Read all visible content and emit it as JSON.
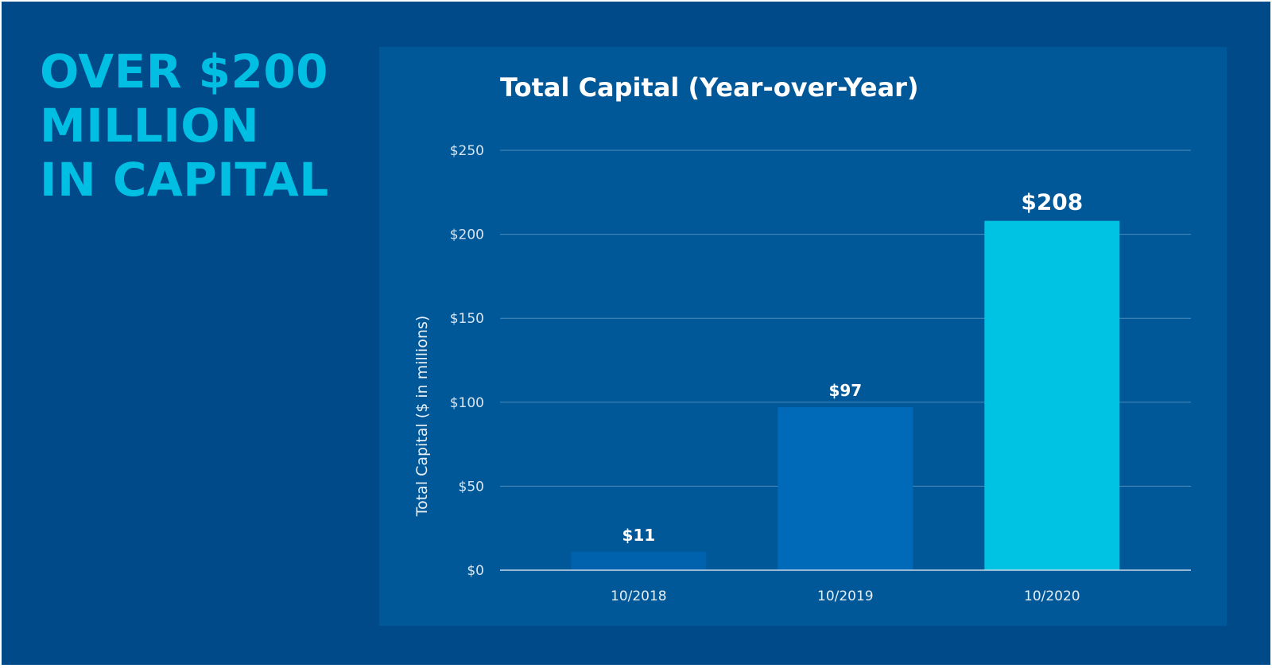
{
  "headline": {
    "lines": [
      "OVER $200",
      "MILLION",
      "IN CAPITAL"
    ]
  },
  "colors": {
    "background": "#004a8a",
    "panel": "#005898",
    "accent": "#00bfe3",
    "bar_2018": "#0062ad",
    "bar_2019": "#006ab8",
    "bar_2020": "#00c3e3"
  },
  "chart_data": {
    "type": "bar",
    "title": "Total Capital (Year-over-Year)",
    "xlabel": "",
    "ylabel": "Total Capital ($ in millions)",
    "categories": [
      "10/2018",
      "10/2019",
      "10/2020"
    ],
    "values": [
      11,
      97,
      208
    ],
    "data_labels": [
      "$11",
      "$97",
      "$208"
    ],
    "ylim": [
      0,
      250
    ],
    "yticks": [
      0,
      50,
      100,
      150,
      200,
      250
    ],
    "ytick_labels": [
      "$0",
      "$50",
      "$100",
      "$150",
      "$200",
      "$250"
    ],
    "grid": true,
    "legend": "none"
  }
}
